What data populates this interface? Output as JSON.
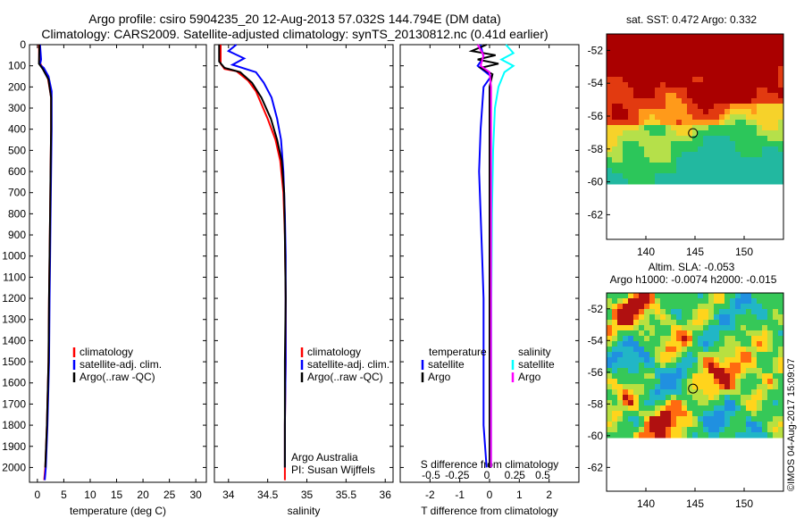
{
  "title": {
    "line1": "Argo profile: csiro 5904235_20 12-Aug-2013 57.032S 144.794E (DM data)",
    "line2": "Climatology: CARS2009. Satellite-adjusted climatology: synTS_20130812.nc (0.41d earlier)"
  },
  "colors": {
    "climatology": "#ff0000",
    "satellite": "#0000ff",
    "argo": "#000000",
    "sal_satellite": "#00ffff",
    "sal_argo": "#ff00ff"
  },
  "chart_data": [
    {
      "id": "temperature",
      "type": "line",
      "xlabel": "temperature (deg C)",
      "ylabel": "",
      "xlim": [
        -1.5,
        32
      ],
      "ylim": [
        2070,
        0
      ],
      "xticks": [
        0,
        5,
        10,
        15,
        20,
        25,
        30
      ],
      "yticks": [
        0,
        100,
        200,
        300,
        400,
        500,
        600,
        700,
        800,
        900,
        1000,
        1100,
        1200,
        1300,
        1400,
        1500,
        1600,
        1700,
        1800,
        1900,
        2000
      ],
      "legend": {
        "position": "center-right",
        "entries": [
          "climatology",
          "satellite-adj. clim.",
          "Argo(..raw -QC)"
        ]
      },
      "series": [
        {
          "name": "climatology",
          "color": "#ff0000",
          "points": [
            [
              0.3,
              0
            ],
            [
              0.35,
              80
            ],
            [
              1.0,
              110
            ],
            [
              2.0,
              160
            ],
            [
              2.6,
              250
            ],
            [
              2.6,
              400
            ],
            [
              2.5,
              600
            ],
            [
              2.4,
              800
            ],
            [
              2.3,
              1000
            ],
            [
              2.2,
              1200
            ],
            [
              2.1,
              1500
            ],
            [
              1.8,
              1800
            ],
            [
              1.5,
              2000
            ],
            [
              1.3,
              2060
            ]
          ]
        },
        {
          "name": "satellite-adj. clim.",
          "color": "#0000ff",
          "points": [
            [
              0.5,
              0
            ],
            [
              0.7,
              70
            ],
            [
              0.5,
              95
            ],
            [
              1.2,
              110
            ],
            [
              2.1,
              150
            ],
            [
              2.7,
              220
            ],
            [
              2.7,
              400
            ],
            [
              2.6,
              600
            ],
            [
              2.5,
              800
            ],
            [
              2.4,
              1000
            ],
            [
              2.3,
              1200
            ],
            [
              2.2,
              1500
            ],
            [
              1.9,
              1800
            ],
            [
              1.6,
              2000
            ],
            [
              1.4,
              2060
            ]
          ]
        },
        {
          "name": "Argo(..raw -QC)",
          "color": "#000000",
          "points": [
            [
              0.4,
              0
            ],
            [
              0.3,
              90
            ],
            [
              1.0,
              115
            ],
            [
              2.1,
              165
            ],
            [
              2.6,
              250
            ],
            [
              2.6,
              400
            ],
            [
              2.5,
              600
            ],
            [
              2.4,
              800
            ],
            [
              2.3,
              1000
            ],
            [
              2.2,
              1200
            ],
            [
              2.1,
              1500
            ],
            [
              1.8,
              1800
            ],
            [
              1.5,
              2000
            ]
          ]
        }
      ]
    },
    {
      "id": "salinity",
      "type": "line",
      "xlabel": "salinity",
      "ylabel": "",
      "xlim": [
        33.82,
        36.1
      ],
      "ylim": [
        2070,
        0
      ],
      "xticks": [
        34,
        34.5,
        35,
        35.5,
        36
      ],
      "xtick_labels": [
        "34",
        "34.5",
        "35",
        "35.5",
        "36"
      ],
      "legend": {
        "position": "center-right",
        "entries": [
          "climatology",
          "satellite-adj. clim.",
          "Argo(..raw -QC)"
        ]
      },
      "annotation": [
        "Argo Australia",
        "PI: Susan Wijffels"
      ],
      "series": [
        {
          "name": "climatology",
          "color": "#ff0000",
          "points": [
            [
              33.9,
              0
            ],
            [
              33.9,
              90
            ],
            [
              33.95,
              115
            ],
            [
              34.1,
              125
            ],
            [
              34.25,
              170
            ],
            [
              34.35,
              220
            ],
            [
              34.5,
              350
            ],
            [
              34.6,
              450
            ],
            [
              34.66,
              550
            ],
            [
              34.7,
              700
            ],
            [
              34.72,
              900
            ],
            [
              34.73,
              1200
            ],
            [
              34.73,
              1500
            ],
            [
              34.72,
              1800
            ],
            [
              34.72,
              2060
            ]
          ]
        },
        {
          "name": "satellite-adj. clim.",
          "color": "#0000ff",
          "points": [
            [
              34.1,
              0
            ],
            [
              34.0,
              30
            ],
            [
              34.2,
              65
            ],
            [
              34.05,
              95
            ],
            [
              34.35,
              130
            ],
            [
              34.45,
              180
            ],
            [
              34.55,
              250
            ],
            [
              34.62,
              350
            ],
            [
              34.67,
              450
            ],
            [
              34.7,
              600
            ],
            [
              34.72,
              800
            ],
            [
              34.73,
              1000
            ],
            [
              34.73,
              1500
            ],
            [
              34.72,
              1800
            ],
            [
              34.72,
              2000
            ]
          ]
        },
        {
          "name": "Argo(..raw -QC)",
          "color": "#000000",
          "points": [
            [
              33.88,
              0
            ],
            [
              33.88,
              80
            ],
            [
              33.95,
              110
            ],
            [
              34.15,
              130
            ],
            [
              34.3,
              180
            ],
            [
              34.42,
              250
            ],
            [
              34.54,
              350
            ],
            [
              34.62,
              450
            ],
            [
              34.68,
              550
            ],
            [
              34.71,
              700
            ],
            [
              34.72,
              900
            ],
            [
              34.73,
              1200
            ],
            [
              34.72,
              1500
            ],
            [
              34.72,
              1800
            ],
            [
              34.72,
              2000
            ]
          ]
        }
      ]
    },
    {
      "id": "difference",
      "type": "line",
      "xlabel": "T difference from climatology",
      "xlabel2": "S difference from climatology",
      "ylabel": "",
      "xlim": [
        -3.0,
        3.0
      ],
      "ylim": [
        2070,
        0
      ],
      "xticks": [
        -2,
        -1,
        0,
        1,
        2
      ],
      "sticks": [
        -0.5,
        -0.25,
        0,
        0.25,
        0.5
      ],
      "stick_labels": [
        "-0.5",
        "-0.25",
        "0",
        "0.25",
        "0.5"
      ],
      "legend": {
        "position": "center",
        "headers": [
          "temperature",
          "salinity"
        ],
        "entries": [
          "satellite",
          "Argo",
          "satellite",
          "Argo"
        ]
      },
      "series": [
        {
          "name": "temperature satellite",
          "color": "#0000ff",
          "points": [
            [
              -0.3,
              0
            ],
            [
              -0.2,
              60
            ],
            [
              -0.4,
              100
            ],
            [
              0.05,
              150
            ],
            [
              -0.2,
              200
            ],
            [
              -0.3,
              400
            ],
            [
              -0.35,
              600
            ],
            [
              -0.3,
              800
            ],
            [
              -0.25,
              1000
            ],
            [
              -0.2,
              1200
            ],
            [
              -0.2,
              1500
            ],
            [
              -0.2,
              1800
            ],
            [
              -0.1,
              2000
            ]
          ]
        },
        {
          "name": "temperature Argo",
          "color": "#000000",
          "points": [
            [
              -0.1,
              0
            ],
            [
              -0.6,
              30
            ],
            [
              0.2,
              50
            ],
            [
              -0.4,
              70
            ],
            [
              0.3,
              90
            ],
            [
              -0.3,
              110
            ],
            [
              0.1,
              140
            ],
            [
              0.0,
              200
            ],
            [
              0.0,
              500
            ],
            [
              0.0,
              1000
            ],
            [
              0.0,
              1500
            ],
            [
              0.0,
              2000
            ]
          ]
        },
        {
          "name": "salinity satellite",
          "color": "#00ffff",
          "points": [
            [
              0.55,
              0
            ],
            [
              0.8,
              40
            ],
            [
              0.4,
              70
            ],
            [
              0.8,
              100
            ],
            [
              0.5,
              130
            ],
            [
              0.3,
              200
            ],
            [
              0.18,
              300
            ],
            [
              0.12,
              500
            ],
            [
              0.08,
              800
            ],
            [
              0.06,
              1200
            ],
            [
              0.05,
              2000
            ]
          ]
        },
        {
          "name": "salinity Argo",
          "color": "#ff00ff",
          "points": [
            [
              -0.4,
              0
            ],
            [
              -0.2,
              50
            ],
            [
              -0.3,
              100
            ],
            [
              0.0,
              130
            ],
            [
              0.05,
              200
            ],
            [
              0.05,
              400
            ],
            [
              0.05,
              700
            ],
            [
              0.05,
              1000
            ],
            [
              0.05,
              1500
            ],
            [
              0.05,
              2000
            ]
          ]
        }
      ]
    }
  ],
  "maps": [
    {
      "id": "sst",
      "title": "sat. SST: 0.472 Argo: 0.332",
      "xlim": [
        136,
        154
      ],
      "ylim": [
        -63.5,
        -51
      ],
      "xticks": [
        140,
        145,
        150
      ],
      "yticks": [
        -52,
        -54,
        -56,
        -58,
        -60,
        -62
      ],
      "data_extent_lat": [
        -60,
        -51
      ],
      "marker": {
        "lon": 144.794,
        "lat": -57.032
      }
    },
    {
      "id": "sla",
      "title": "Altim. SLA: -0.053",
      "subtitle": "Argo h1000: -0.0074 h2000: -0.015",
      "xlim": [
        136,
        154
      ],
      "ylim": [
        -63.5,
        -51
      ],
      "xticks": [
        140,
        145,
        150
      ],
      "yticks": [
        -52,
        -54,
        -56,
        -58,
        -60,
        -62
      ],
      "data_extent_lat": [
        -60,
        -51
      ],
      "marker": {
        "lon": 144.794,
        "lat": -57.032
      }
    }
  ],
  "watermark": "©IMOS 04-Aug-2017 15:09:07"
}
